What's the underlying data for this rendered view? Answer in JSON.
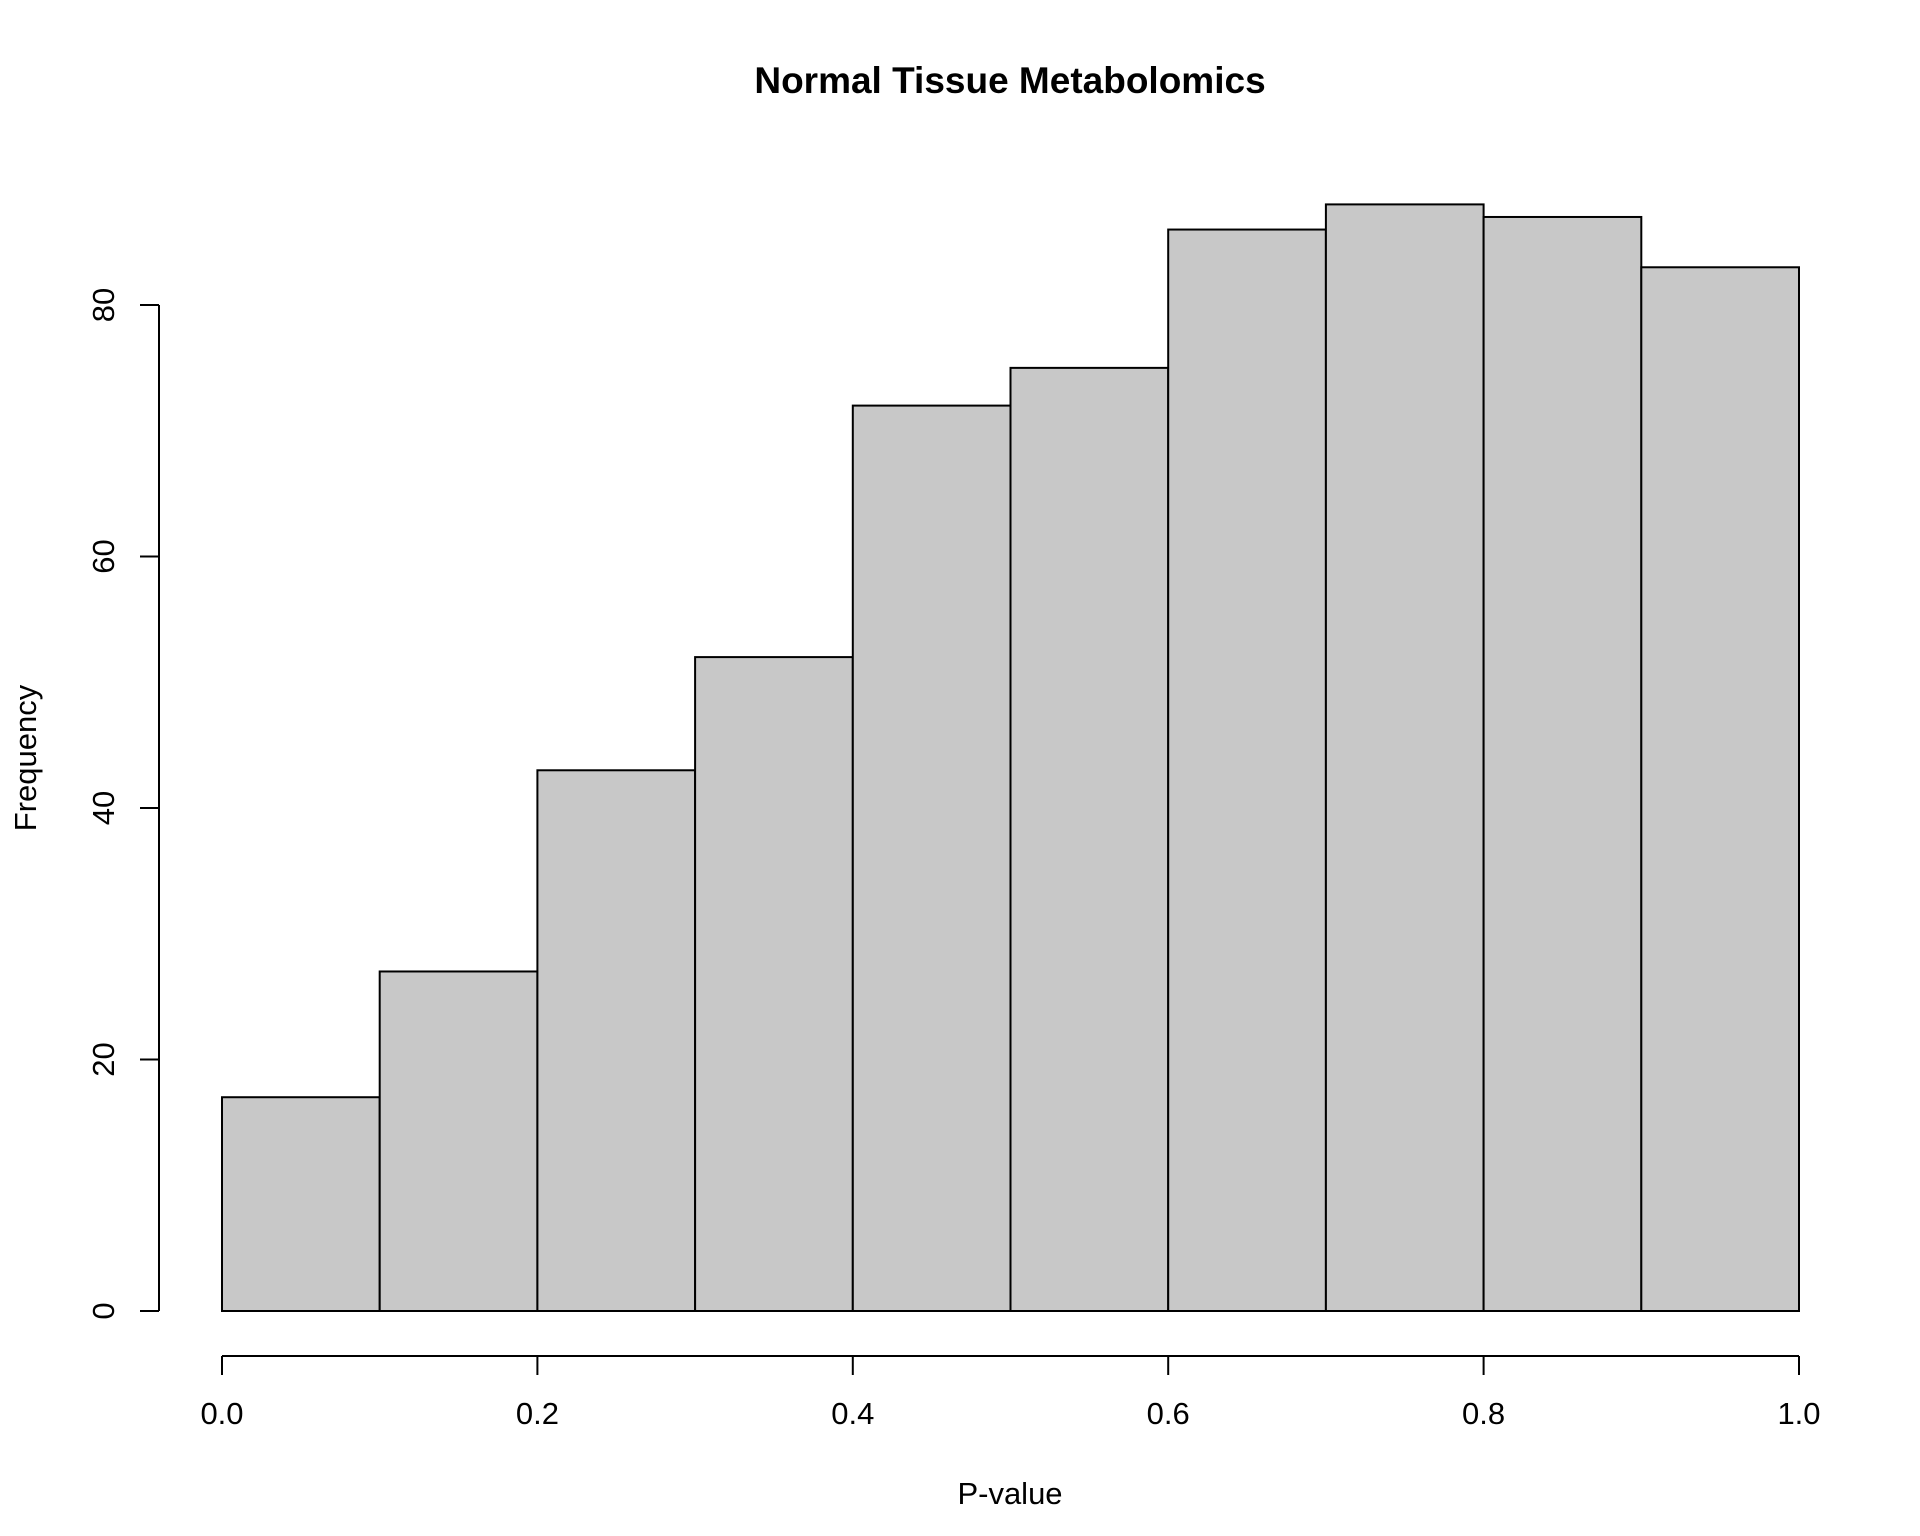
{
  "chart_data": {
    "type": "bar",
    "title": "Normal Tissue Metabolomics",
    "xlabel": "P-value",
    "ylabel": "Frequency",
    "bin_edges": [
      0.0,
      0.1,
      0.2,
      0.3,
      0.4,
      0.5,
      0.6,
      0.7,
      0.8,
      0.9,
      1.0
    ],
    "values": [
      17,
      27,
      43,
      52,
      72,
      75,
      86,
      88,
      87,
      83
    ],
    "xlim": [
      0.0,
      1.0
    ],
    "ylim": [
      0,
      80
    ],
    "x_ticks": [
      0.0,
      0.2,
      0.4,
      0.6,
      0.8,
      1.0
    ],
    "x_tick_labels": [
      "0.0",
      "0.2",
      "0.4",
      "0.6",
      "0.8",
      "1.0"
    ],
    "y_ticks": [
      0,
      20,
      40,
      60,
      80
    ],
    "y_tick_labels": [
      "0",
      "20",
      "40",
      "60",
      "80"
    ],
    "grid": false,
    "legend": "none",
    "bar_fill": "#c8c8c8",
    "bar_stroke": "#000000"
  }
}
